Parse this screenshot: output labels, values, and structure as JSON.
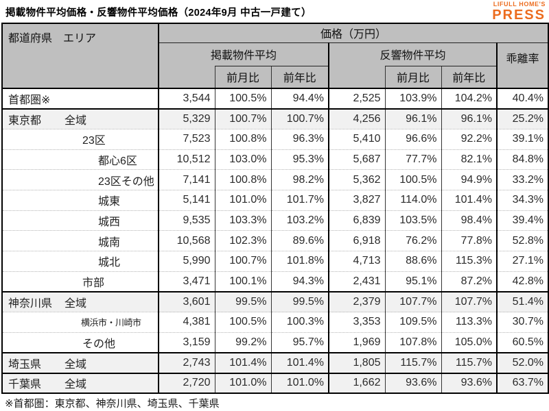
{
  "page": {
    "title": "掲載物件平均価格・反響物件平均価格（2024年9月 中古一戸建て）",
    "footnote": "※首都圏：東京都、神奈川県、埼玉県、千葉県"
  },
  "logo": {
    "line1": "LIFULL HOME'S",
    "line2": "PRESS",
    "color": "#EC6C1F"
  },
  "colors": {
    "header_bg": "#BFBFBF",
    "shaded_row_bg": "#F1F1F1",
    "border": "#000000"
  },
  "table": {
    "corner_header": "都道府県　エリア",
    "price_header": "価格（万円）",
    "group_headers": {
      "listed": "掲載物件平均",
      "response": "反響物件平均",
      "divergence": "乖離率"
    },
    "sub_headers": {
      "mom": "前月比",
      "yoy": "前年比"
    },
    "rows": [
      {
        "pref": "首都圏※",
        "area": "",
        "indent": 0,
        "shaded": false,
        "group_start": true,
        "values": [
          "3,544",
          "100.5%",
          "94.4%",
          "2,525",
          "103.9%",
          "104.2%",
          "40.4%"
        ]
      },
      {
        "pref": "東京都",
        "area": "全域",
        "indent": 1,
        "shaded": true,
        "group_start": true,
        "values": [
          "5,329",
          "100.7%",
          "100.7%",
          "4,256",
          "96.1%",
          "96.1%",
          "25.2%"
        ]
      },
      {
        "pref": "",
        "area": "23区",
        "indent": 2,
        "shaded": false,
        "group_start": false,
        "values": [
          "7,523",
          "100.8%",
          "96.3%",
          "5,410",
          "96.6%",
          "92.2%",
          "39.1%"
        ]
      },
      {
        "pref": "",
        "area": "都心6区",
        "indent": 3,
        "shaded": false,
        "group_start": false,
        "values": [
          "10,512",
          "103.0%",
          "95.3%",
          "5,687",
          "77.7%",
          "82.1%",
          "84.8%"
        ]
      },
      {
        "pref": "",
        "area": "23区その他",
        "indent": 3,
        "shaded": false,
        "group_start": false,
        "values": [
          "7,141",
          "100.8%",
          "98.2%",
          "5,362",
          "100.5%",
          "94.9%",
          "33.2%"
        ]
      },
      {
        "pref": "",
        "area": "城東",
        "indent": 3,
        "shaded": false,
        "group_start": false,
        "values": [
          "5,141",
          "101.0%",
          "101.7%",
          "3,827",
          "114.0%",
          "101.4%",
          "34.3%"
        ]
      },
      {
        "pref": "",
        "area": "城西",
        "indent": 3,
        "shaded": false,
        "group_start": false,
        "values": [
          "9,535",
          "103.3%",
          "103.2%",
          "6,839",
          "103.5%",
          "98.4%",
          "39.4%"
        ]
      },
      {
        "pref": "",
        "area": "城南",
        "indent": 3,
        "shaded": false,
        "group_start": false,
        "values": [
          "10,568",
          "102.3%",
          "89.6%",
          "6,918",
          "76.2%",
          "77.8%",
          "52.8%"
        ]
      },
      {
        "pref": "",
        "area": "城北",
        "indent": 3,
        "shaded": false,
        "group_start": false,
        "values": [
          "5,990",
          "100.7%",
          "101.8%",
          "4,713",
          "88.6%",
          "115.3%",
          "27.1%"
        ]
      },
      {
        "pref": "",
        "area": "市部",
        "indent": 2,
        "shaded": false,
        "group_start": false,
        "values": [
          "3,471",
          "100.1%",
          "94.3%",
          "2,431",
          "95.1%",
          "87.2%",
          "42.8%"
        ]
      },
      {
        "pref": "神奈川県",
        "area": "全域",
        "indent": 1,
        "shaded": true,
        "group_start": true,
        "values": [
          "3,601",
          "99.5%",
          "99.5%",
          "2,379",
          "107.7%",
          "107.7%",
          "51.4%"
        ]
      },
      {
        "pref": "",
        "area": "横浜市・川崎市",
        "indent": 2,
        "small": true,
        "shaded": false,
        "group_start": false,
        "values": [
          "4,381",
          "100.5%",
          "100.3%",
          "3,353",
          "109.5%",
          "113.3%",
          "30.7%"
        ]
      },
      {
        "pref": "",
        "area": "その他",
        "indent": 2,
        "shaded": false,
        "group_start": false,
        "values": [
          "3,159",
          "99.2%",
          "95.7%",
          "1,969",
          "107.8%",
          "105.0%",
          "60.5%"
        ]
      },
      {
        "pref": "埼玉県",
        "area": "全域",
        "indent": 1,
        "shaded": true,
        "group_start": true,
        "values": [
          "2,743",
          "101.4%",
          "101.4%",
          "1,805",
          "115.7%",
          "115.7%",
          "52.0%"
        ]
      },
      {
        "pref": "千葉県",
        "area": "全域",
        "indent": 1,
        "shaded": true,
        "group_start": true,
        "values": [
          "2,720",
          "101.0%",
          "101.0%",
          "1,662",
          "93.6%",
          "93.6%",
          "63.7%"
        ]
      }
    ]
  }
}
